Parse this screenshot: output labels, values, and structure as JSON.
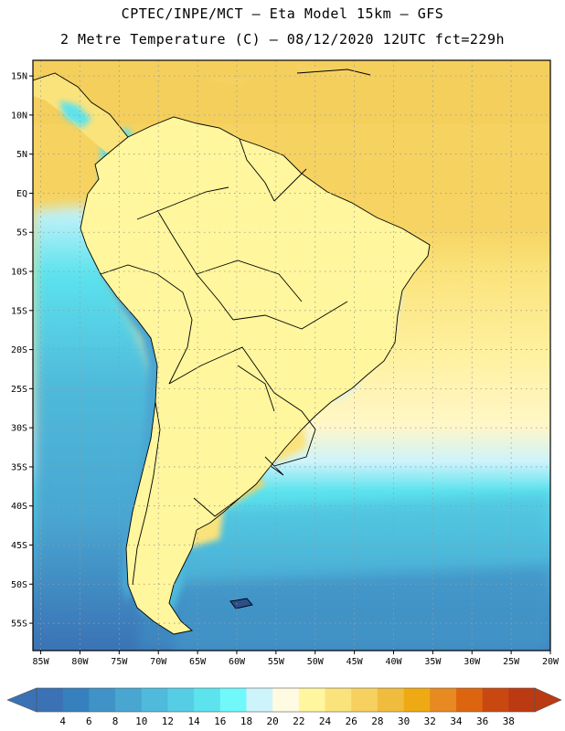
{
  "header": {
    "title_line1": "CPTEC/INPE/MCT –  Eta Model 15km – GFS",
    "title_line2": "2 Metre Temperature (C) – 08/12/2020 12UTC fct=229h"
  },
  "map": {
    "lat_labels": [
      "15N",
      "10N",
      "5N",
      "EQ",
      "5S",
      "10S",
      "15S",
      "20S",
      "25S",
      "30S",
      "35S",
      "40S",
      "45S",
      "50S",
      "55S"
    ],
    "lat_values": [
      15,
      10,
      5,
      0,
      -5,
      -10,
      -15,
      -20,
      -25,
      -30,
      -35,
      -40,
      -45,
      -50,
      -55
    ],
    "lon_labels": [
      "85W",
      "80W",
      "75W",
      "70W",
      "65W",
      "60W",
      "55W",
      "50W",
      "45W",
      "40W",
      "35W",
      "30W",
      "25W",
      "20W"
    ],
    "lon_values": [
      -85,
      -80,
      -75,
      -70,
      -65,
      -60,
      -55,
      -50,
      -45,
      -40,
      -35,
      -30,
      -25,
      -20
    ],
    "lon_range": [
      -86,
      -20
    ],
    "lat_range": [
      -58.5,
      17
    ],
    "grid_color": "#9a9a9a"
  },
  "colorbar": {
    "labels": [
      "4",
      "6",
      "8",
      "10",
      "12",
      "14",
      "16",
      "18",
      "20",
      "22",
      "24",
      "26",
      "28",
      "30",
      "32",
      "34",
      "36",
      "38"
    ],
    "colors": [
      "#3a72b5",
      "#3580bd",
      "#3f93c6",
      "#49a6d1",
      "#4fbadb",
      "#55cde4",
      "#5ce3ee",
      "#70f8fb",
      "#cdf3fb",
      "#fffbe2",
      "#fff69d",
      "#fbe37c",
      "#f6d15f",
      "#efbc3d",
      "#eeaa13",
      "#e68a21",
      "#dd6510",
      "#c84810",
      "#bc3a12"
    ]
  }
}
